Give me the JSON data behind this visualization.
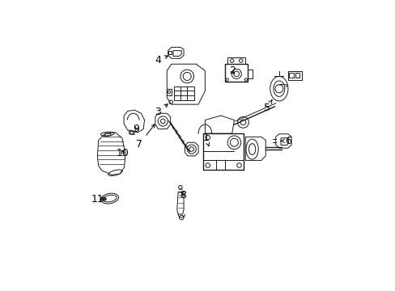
{
  "background_color": "#ffffff",
  "border_color": "#000000",
  "line_color": "#1a1a1a",
  "font_size": 9,
  "label_color": "#000000",
  "parts": {
    "label_positions": {
      "1": [
        0.535,
        0.545,
        0.535,
        0.5
      ],
      "2": [
        0.655,
        0.845,
        0.655,
        0.815
      ],
      "3": [
        0.315,
        0.655,
        0.35,
        0.655
      ],
      "4": [
        0.318,
        0.885,
        0.36,
        0.88
      ],
      "5": [
        0.805,
        0.68,
        0.805,
        0.71
      ],
      "6": [
        0.87,
        0.53,
        0.845,
        0.53
      ],
      "7": [
        0.235,
        0.515,
        0.265,
        0.515
      ],
      "8": [
        0.43,
        0.285,
        0.405,
        0.305
      ],
      "9": [
        0.188,
        0.58,
        0.17,
        0.565
      ],
      "10": [
        0.118,
        0.475,
        0.138,
        0.49
      ],
      "11": [
        0.06,
        0.27,
        0.085,
        0.27
      ]
    }
  }
}
